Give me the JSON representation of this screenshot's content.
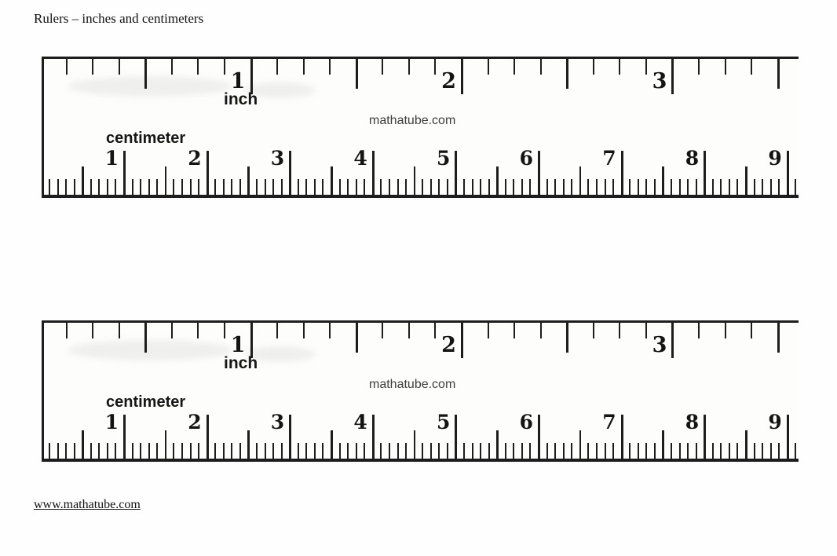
{
  "page": {
    "title": "Rulers – inches and centimeters",
    "footer_link": "www.mathatube.com"
  },
  "colors": {
    "ink": "#1d1d1d",
    "watermark_gray": "#3d3d3d",
    "background": "#ffffff"
  },
  "ruler": {
    "inch_label": "inch",
    "cm_label": "centimeter",
    "watermark": "mathatube.com",
    "inch_numbers": [
      "1",
      "2",
      "3"
    ],
    "cm_numbers": [
      "1",
      "2",
      "3",
      "4",
      "5",
      "6",
      "7",
      "8",
      "9"
    ]
  },
  "rulers": [
    {
      "id": "ruler-top"
    },
    {
      "id": "ruler-bottom"
    }
  ]
}
